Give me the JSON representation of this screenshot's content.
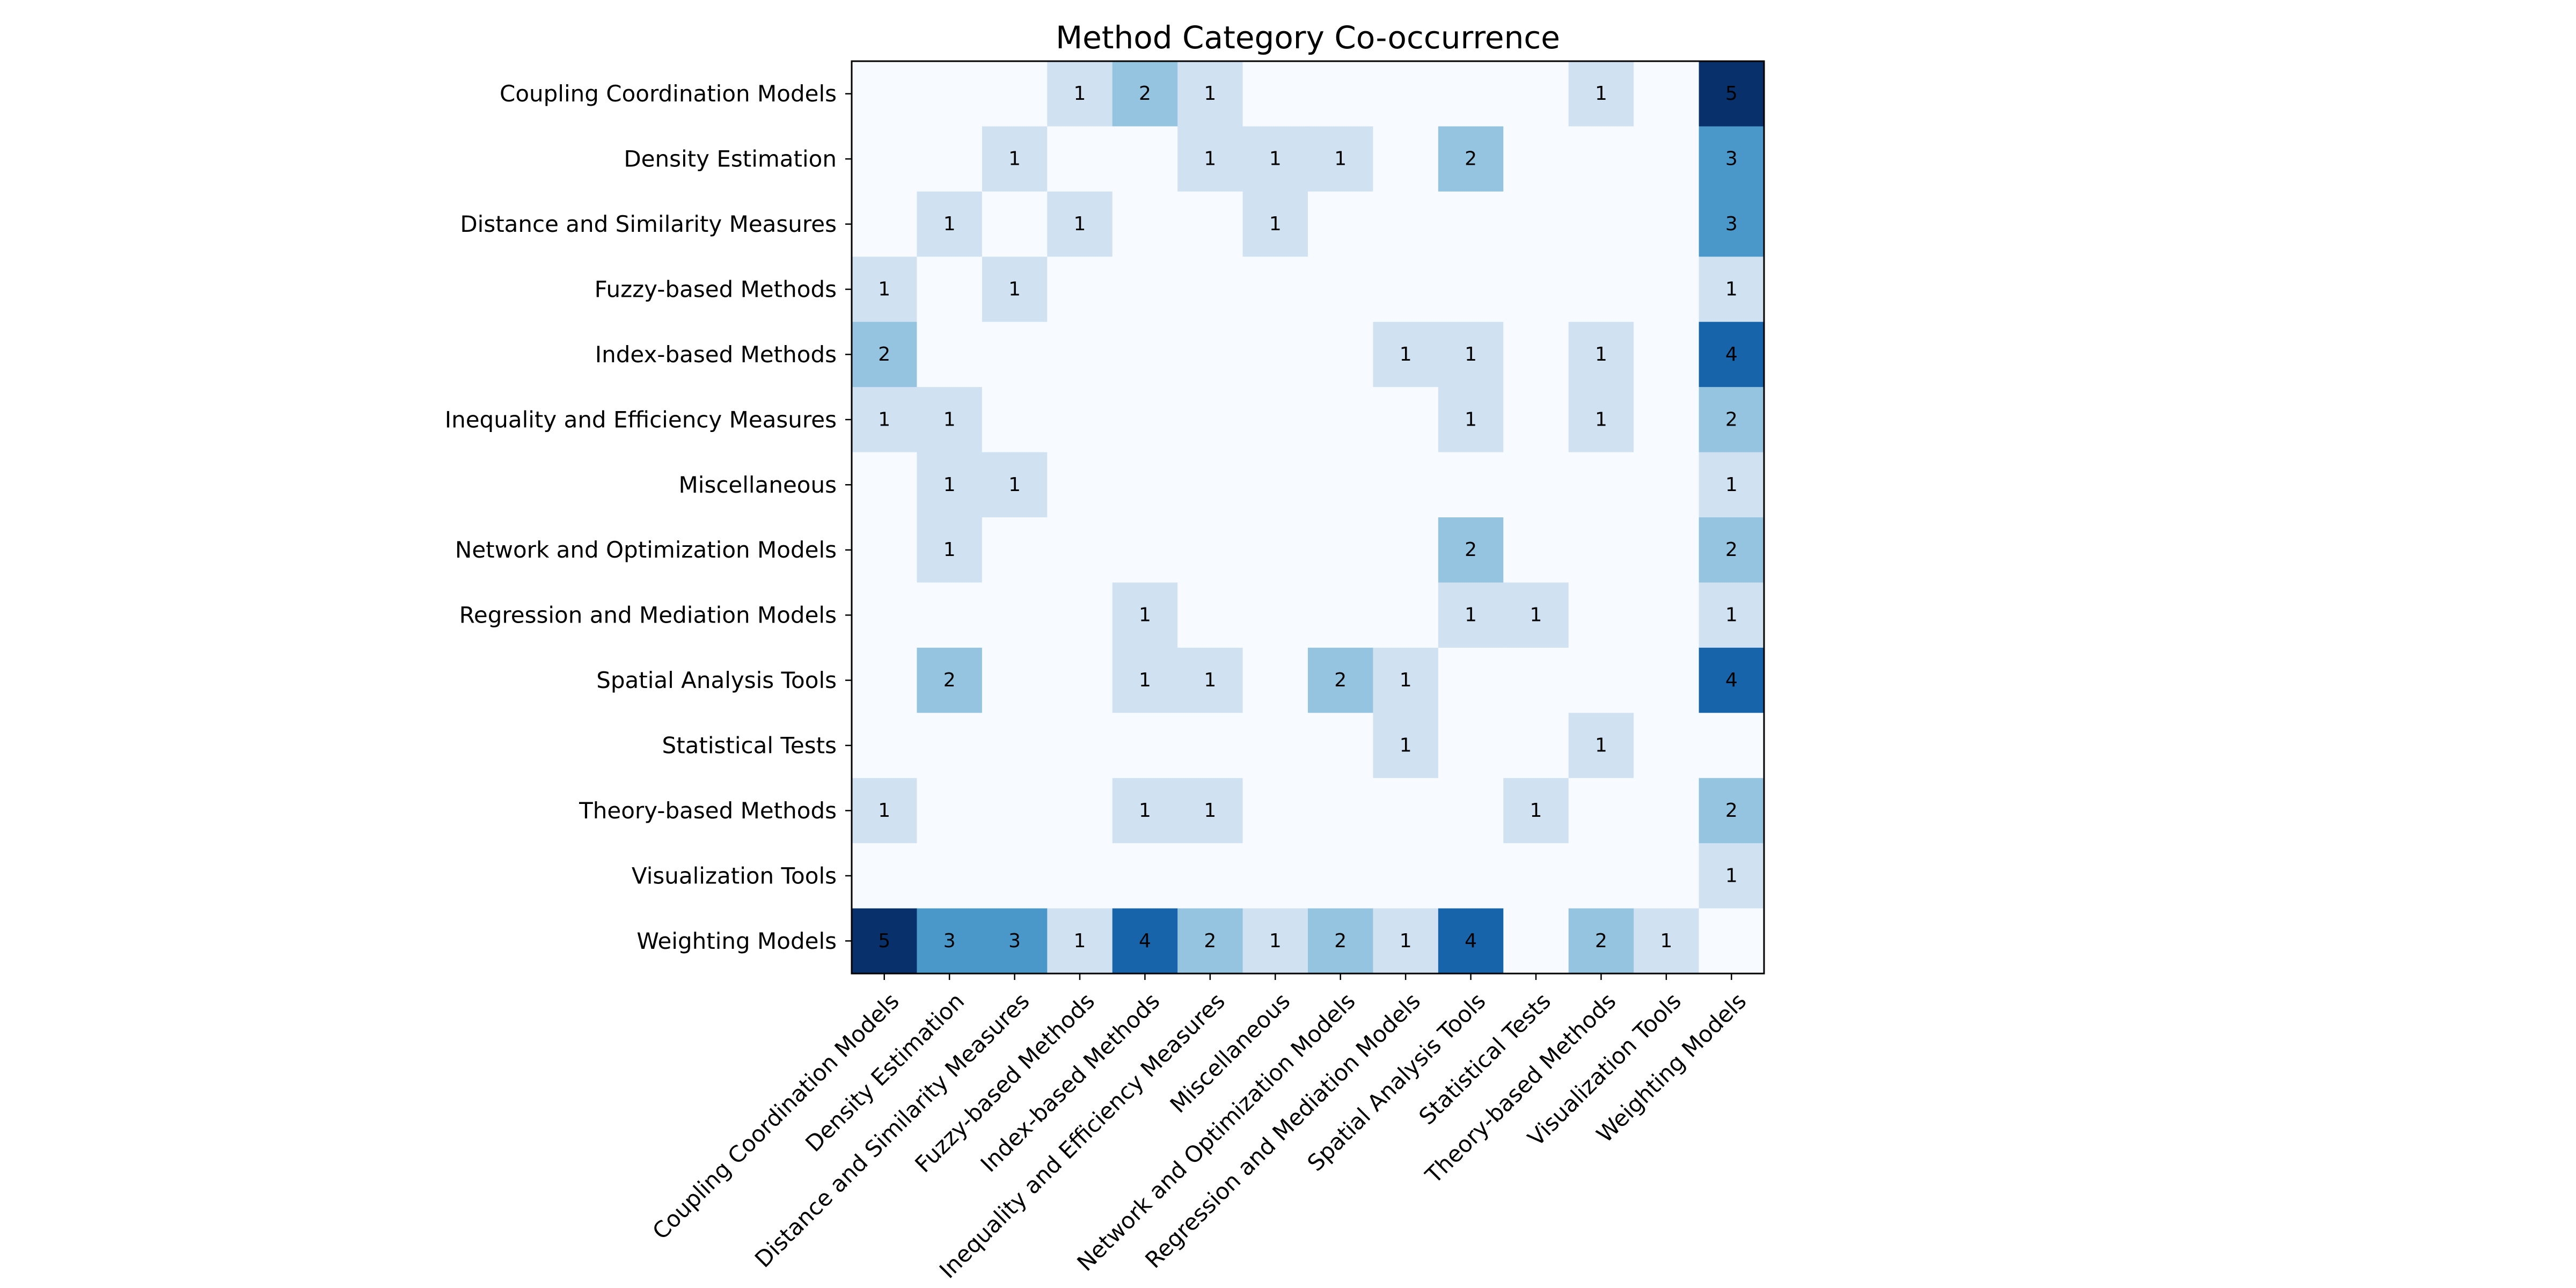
{
  "chart_data": {
    "type": "heatmap",
    "title": "Method Category Co-occurrence",
    "colormap": "Blues",
    "colors": {
      "min": "#f7fbff",
      "max": "#08306b",
      "frame": "#000000"
    },
    "grid": false,
    "vmin": 0,
    "vmax": 5,
    "categories": [
      "Coupling Coordination Models",
      "Density Estimation",
      "Distance and Similarity Measures",
      "Fuzzy-based Methods",
      "Index-based Methods",
      "Inequality and Efficiency Measures",
      "Miscellaneous",
      "Network and Optimization Models",
      "Regression and Mediation Models",
      "Spatial Analysis Tools",
      "Statistical Tests",
      "Theory-based Methods",
      "Visualization Tools",
      "Weighting Models"
    ],
    "matrix": [
      [
        0,
        0,
        0,
        1,
        2,
        1,
        0,
        0,
        0,
        0,
        0,
        1,
        0,
        5
      ],
      [
        0,
        0,
        1,
        0,
        0,
        1,
        1,
        1,
        0,
        2,
        0,
        0,
        0,
        3
      ],
      [
        0,
        1,
        0,
        1,
        0,
        0,
        1,
        0,
        0,
        0,
        0,
        0,
        0,
        3
      ],
      [
        1,
        0,
        1,
        0,
        0,
        0,
        0,
        0,
        0,
        0,
        0,
        0,
        0,
        1
      ],
      [
        2,
        0,
        0,
        0,
        0,
        0,
        0,
        0,
        1,
        1,
        0,
        1,
        0,
        4
      ],
      [
        1,
        1,
        0,
        0,
        0,
        0,
        0,
        0,
        0,
        1,
        0,
        1,
        0,
        2
      ],
      [
        0,
        1,
        1,
        0,
        0,
        0,
        0,
        0,
        0,
        0,
        0,
        0,
        0,
        1
      ],
      [
        0,
        1,
        0,
        0,
        0,
        0,
        0,
        0,
        0,
        2,
        0,
        0,
        0,
        2
      ],
      [
        0,
        0,
        0,
        0,
        1,
        0,
        0,
        0,
        0,
        1,
        1,
        0,
        0,
        1
      ],
      [
        0,
        2,
        0,
        0,
        1,
        1,
        0,
        2,
        1,
        0,
        0,
        0,
        0,
        4
      ],
      [
        0,
        0,
        0,
        0,
        0,
        0,
        0,
        0,
        1,
        0,
        0,
        1,
        0,
        0
      ],
      [
        1,
        0,
        0,
        0,
        1,
        1,
        0,
        0,
        0,
        0,
        1,
        0,
        0,
        2
      ],
      [
        0,
        0,
        0,
        0,
        0,
        0,
        0,
        0,
        0,
        0,
        0,
        0,
        0,
        1
      ],
      [
        5,
        3,
        3,
        1,
        4,
        2,
        1,
        2,
        1,
        4,
        0,
        2,
        1,
        0
      ]
    ],
    "annotate_nonzero": true
  }
}
